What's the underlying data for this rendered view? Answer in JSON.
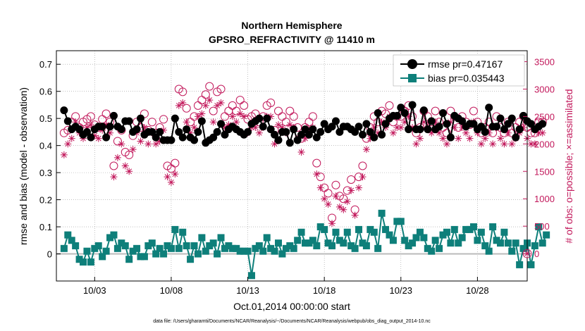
{
  "chart_data": {
    "type": "line",
    "title": "Northern Hemisphere",
    "subtitle": "GPSRO_REFRACTIVITY @ 11410 m",
    "xlabel": "Oct.01,2014 00:00:00 start",
    "ylabel": "rmse and bias (model - observation)",
    "ylabel_right": "# of obs: o=possible; ×=assimilated",
    "footer": "data file: /Users/gharamti/Documents/NCAR/Reanalysis/~/Documents/NCAR/Reanalysis/webpub/obs_diag_output_2014-10.nc",
    "xlim": [
      0.5,
      31.25
    ],
    "ylim": [
      -0.1,
      0.75
    ],
    "ylim_right": [
      -500,
      3700
    ],
    "x_ticks": [
      3,
      8,
      13,
      18,
      23,
      28
    ],
    "x_tick_labels": [
      "10/03",
      "10/08",
      "10/13",
      "10/18",
      "10/23",
      "10/28"
    ],
    "y_ticks": [
      0,
      0.1,
      0.2,
      0.3,
      0.4,
      0.5,
      0.6,
      0.7
    ],
    "y_tick_labels": [
      "0",
      "0.1",
      "0.2",
      "0.3",
      "0.4",
      "0.5",
      "0.6",
      "0.7"
    ],
    "y_right_ticks": [
      0,
      500,
      1000,
      1500,
      2000,
      2500,
      3000,
      3500
    ],
    "y_right_tick_labels": [
      "0",
      "500",
      "1000",
      "1500",
      "2000",
      "2500",
      "3000",
      "3500"
    ],
    "grid": true,
    "legend_position": "top-right",
    "legend": [
      "rmse pr=0.47167",
      "bias pr=0.035443"
    ],
    "series": [
      {
        "name": "rmse pr=0.47167",
        "axis": "left",
        "color": "#000000",
        "marker": "filled-circle",
        "values": [
          0.53,
          0.49,
          0.46,
          0.47,
          0.46,
          0.44,
          0.45,
          0.43,
          0.46,
          0.47,
          0.47,
          0.43,
          0.47,
          0.51,
          0.47,
          0.46,
          0.49,
          0.49,
          0.45,
          0.46,
          0.5,
          0.44,
          0.45,
          0.45,
          0.43,
          0.45,
          0.42,
          0.42,
          0.42,
          0.5,
          0.45,
          0.43,
          0.46,
          0.43,
          0.42,
          0.45,
          0.49,
          0.41,
          0.42,
          0.43,
          0.45,
          0.48,
          0.44,
          0.46,
          0.47,
          0.46,
          0.45,
          0.44,
          0.45,
          0.48,
          0.49,
          0.5,
          0.47,
          0.5,
          0.46,
          0.44,
          0.42,
          0.45,
          0.45,
          0.41,
          0.46,
          0.42,
          0.44,
          0.46,
          0.44,
          0.46,
          0.43,
          0.45,
          0.48,
          0.46,
          0.47,
          0.49,
          0.45,
          0.47,
          0.47,
          0.46,
          0.45,
          0.47,
          0.44,
          0.48,
          0.45,
          0.43,
          0.52,
          0.44,
          0.48,
          0.5,
          0.51,
          0.51,
          0.54,
          0.52,
          0.46,
          0.55,
          0.46,
          0.46,
          0.53,
          0.46,
          0.49,
          0.46,
          0.47,
          0.52,
          0.48,
          0.43,
          0.51,
          0.5,
          0.49,
          0.47,
          0.48,
          0.48,
          0.46,
          0.47,
          0.45,
          0.54,
          0.47,
          0.47,
          0.5,
          0.46,
          0.48,
          0.5,
          0.43,
          0.46,
          0.51,
          0.49,
          0.48,
          0.46,
          0.47,
          0.48
        ],
        "x_start": 1.0,
        "x_step": 0.25
      },
      {
        "name": "bias pr=0.035443",
        "axis": "left",
        "color": "#0e7f7a",
        "marker": "filled-square",
        "values": [
          0.02,
          0.07,
          0.05,
          0.03,
          -0.02,
          -0.03,
          0.01,
          -0.03,
          0.02,
          0.03,
          -0.01,
          0.01,
          0.06,
          0.07,
          0.02,
          0.04,
          0.03,
          -0.02,
          0.01,
          0.02,
          -0.01,
          -0.01,
          0.03,
          0.04,
          0.0,
          0.02,
          0.0,
          0.03,
          0.02,
          0.09,
          0.02,
          0.08,
          0.03,
          -0.02,
          0.03,
          0.0,
          0.06,
          0.01,
          0.03,
          0.04,
          0.0,
          0.06,
          0.02,
          0.03,
          0.02,
          0.02,
          0.01,
          0.01,
          0.01,
          -0.08,
          0.02,
          0.03,
          0.01,
          0.06,
          0.02,
          0.01,
          0.04,
          0.0,
          0.02,
          0.03,
          0.02,
          0.05,
          0.08,
          0.04,
          0.04,
          0.05,
          0.03,
          0.1,
          0.09,
          0.04,
          0.03,
          0.08,
          0.05,
          0.04,
          0.08,
          0.03,
          0.02,
          0.09,
          0.04,
          0.03,
          0.09,
          0.08,
          0.02,
          0.15,
          0.09,
          0.07,
          0.05,
          0.12,
          0.12,
          0.05,
          0.03,
          0.04,
          0.06,
          0.08,
          0.06,
          0.02,
          0.01,
          0.05,
          0.02,
          0.07,
          0.08,
          0.04,
          0.09,
          0.04,
          0.06,
          0.09,
          0.09,
          0.1,
          0.05,
          0.08,
          0.03,
          0.01,
          0.1,
          0.05,
          0.04,
          0.08,
          0.04,
          0.01,
          0.04,
          -0.04,
          0.02,
          0.04,
          -0.04,
          0.03,
          0.1,
          0.04,
          0.07
        ],
        "x_start": 1.0,
        "x_step": 0.25
      },
      {
        "name": "possible observations",
        "axis": "right",
        "color": "#c2185b",
        "marker": "open-circle",
        "values": [
          2200,
          2250,
          2400,
          2500,
          2300,
          2400,
          2450,
          2500,
          2350,
          2300,
          2450,
          2550,
          2400,
          1600,
          2050,
          2250,
          1850,
          1800,
          2150,
          2400,
          2300,
          2550,
          2250,
          2400,
          2200,
          2300,
          2450,
          1600,
          1550,
          1650,
          3000,
          2950,
          2650,
          2400,
          2500,
          2700,
          2800,
          2900,
          3050,
          2600,
          2950,
          3000,
          2500,
          2600,
          2700,
          2600,
          2800,
          2700,
          2450,
          2500,
          2550,
          2400,
          2500,
          2700,
          2750,
          2250,
          2600,
          2500,
          2400,
          2600,
          2500,
          2300,
          2100,
          2300,
          2400,
          2500,
          1650,
          1400,
          1200,
          1100,
          650,
          1250,
          1050,
          1000,
          1150,
          1350,
          800,
          1400,
          1600,
          2100,
          2300,
          2500,
          2400,
          2600,
          2550,
          2700,
          2400,
          2500,
          2500,
          2600,
          2700,
          2500,
          2200,
          2300,
          2600,
          2500,
          2400,
          2600,
          2400,
          2300,
          2200,
          2600,
          2500,
          2300,
          2500,
          2400,
          2350,
          2600,
          2400,
          2200,
          2300,
          2400,
          2200,
          2500,
          2300,
          2200,
          2400,
          2200,
          2300,
          2400,
          2500,
          2300,
          2200,
          2200,
          2400,
          2400
        ],
        "x_start": 1.0,
        "x_step": 0.25
      },
      {
        "name": "assimilated observations",
        "axis": "right",
        "color": "#c2185b",
        "marker": "asterisk",
        "values": [
          1800,
          2000,
          2100,
          2400,
          2200,
          2100,
          2300,
          2350,
          2150,
          2100,
          2250,
          2350,
          2200,
          1400,
          1750,
          2000,
          1600,
          1500,
          1900,
          2200,
          2050,
          2300,
          2000,
          2200,
          2000,
          2050,
          2250,
          1400,
          1300,
          1450,
          2700,
          2750,
          2400,
          2200,
          2300,
          2500,
          2550,
          2700,
          2800,
          2400,
          2700,
          2750,
          2300,
          2350,
          2500,
          2400,
          2550,
          2500,
          2200,
          2300,
          2300,
          2200,
          2300,
          2500,
          2500,
          2000,
          2350,
          2300,
          2200,
          2350,
          2300,
          2100,
          1850,
          2100,
          2200,
          2300,
          1450,
          1200,
          1000,
          900,
          550,
          1050,
          850,
          800,
          950,
          1150,
          700,
          1200,
          1400,
          1900,
          2100,
          2300,
          2200,
          2400,
          2300,
          2500,
          2200,
          2300,
          2300,
          2400,
          2500,
          2300,
          2000,
          2100,
          2400,
          2300,
          2200,
          2400,
          2200,
          2100,
          2000,
          2400,
          2300,
          2100,
          2300,
          2200,
          2100,
          2400,
          2200,
          2000,
          2100,
          2200,
          2000,
          2300,
          2100,
          2000,
          2200,
          2000,
          2100,
          2200,
          2300,
          2100,
          2000,
          2000,
          2200,
          2200
        ],
        "x_start": 1.0,
        "x_step": 0.25
      }
    ],
    "zero_marker_right": 0
  }
}
